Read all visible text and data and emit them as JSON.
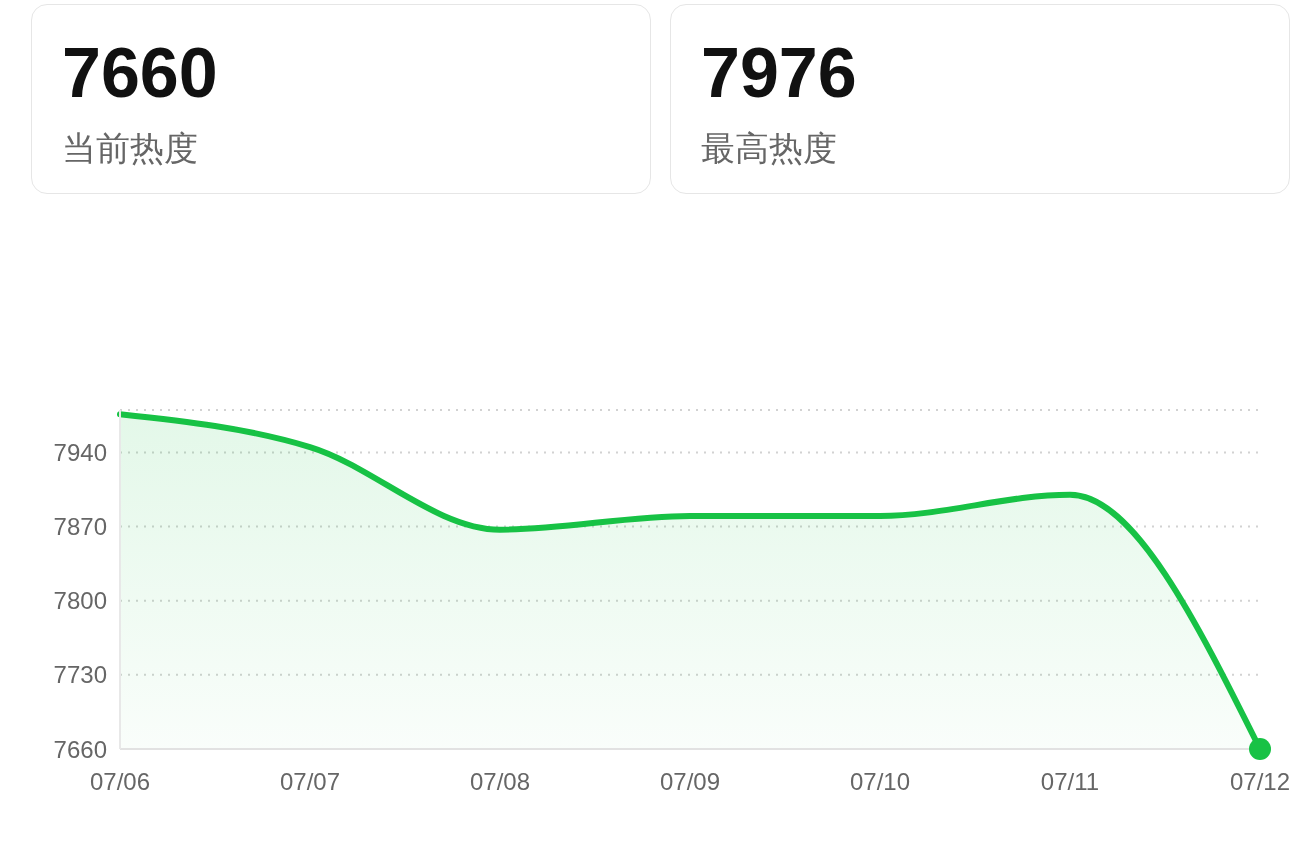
{
  "chart_data": [
    {
      "type": "other",
      "title": "7660",
      "subtitle": "当前热度"
    },
    {
      "type": "other",
      "title": "7976",
      "subtitle": "最高热度"
    },
    {
      "type": "area",
      "categories": [
        "07/06",
        "07/07",
        "07/08",
        "07/09",
        "07/10",
        "07/11",
        "07/12"
      ],
      "series": [
        {
          "type": "area",
          "color": "#17c245",
          "values": [
            7976,
            7945,
            7867,
            7880,
            7880,
            7900,
            7660
          ]
        },
        {
          "type": "scatter",
          "color": "#17c245",
          "x": [
            "07/12"
          ],
          "values": [
            7660
          ]
        }
      ],
      "ylim": [
        7660,
        7980
      ],
      "yticks": [
        7660,
        7730,
        7800,
        7870,
        7940
      ],
      "grid": "y"
    }
  ]
}
